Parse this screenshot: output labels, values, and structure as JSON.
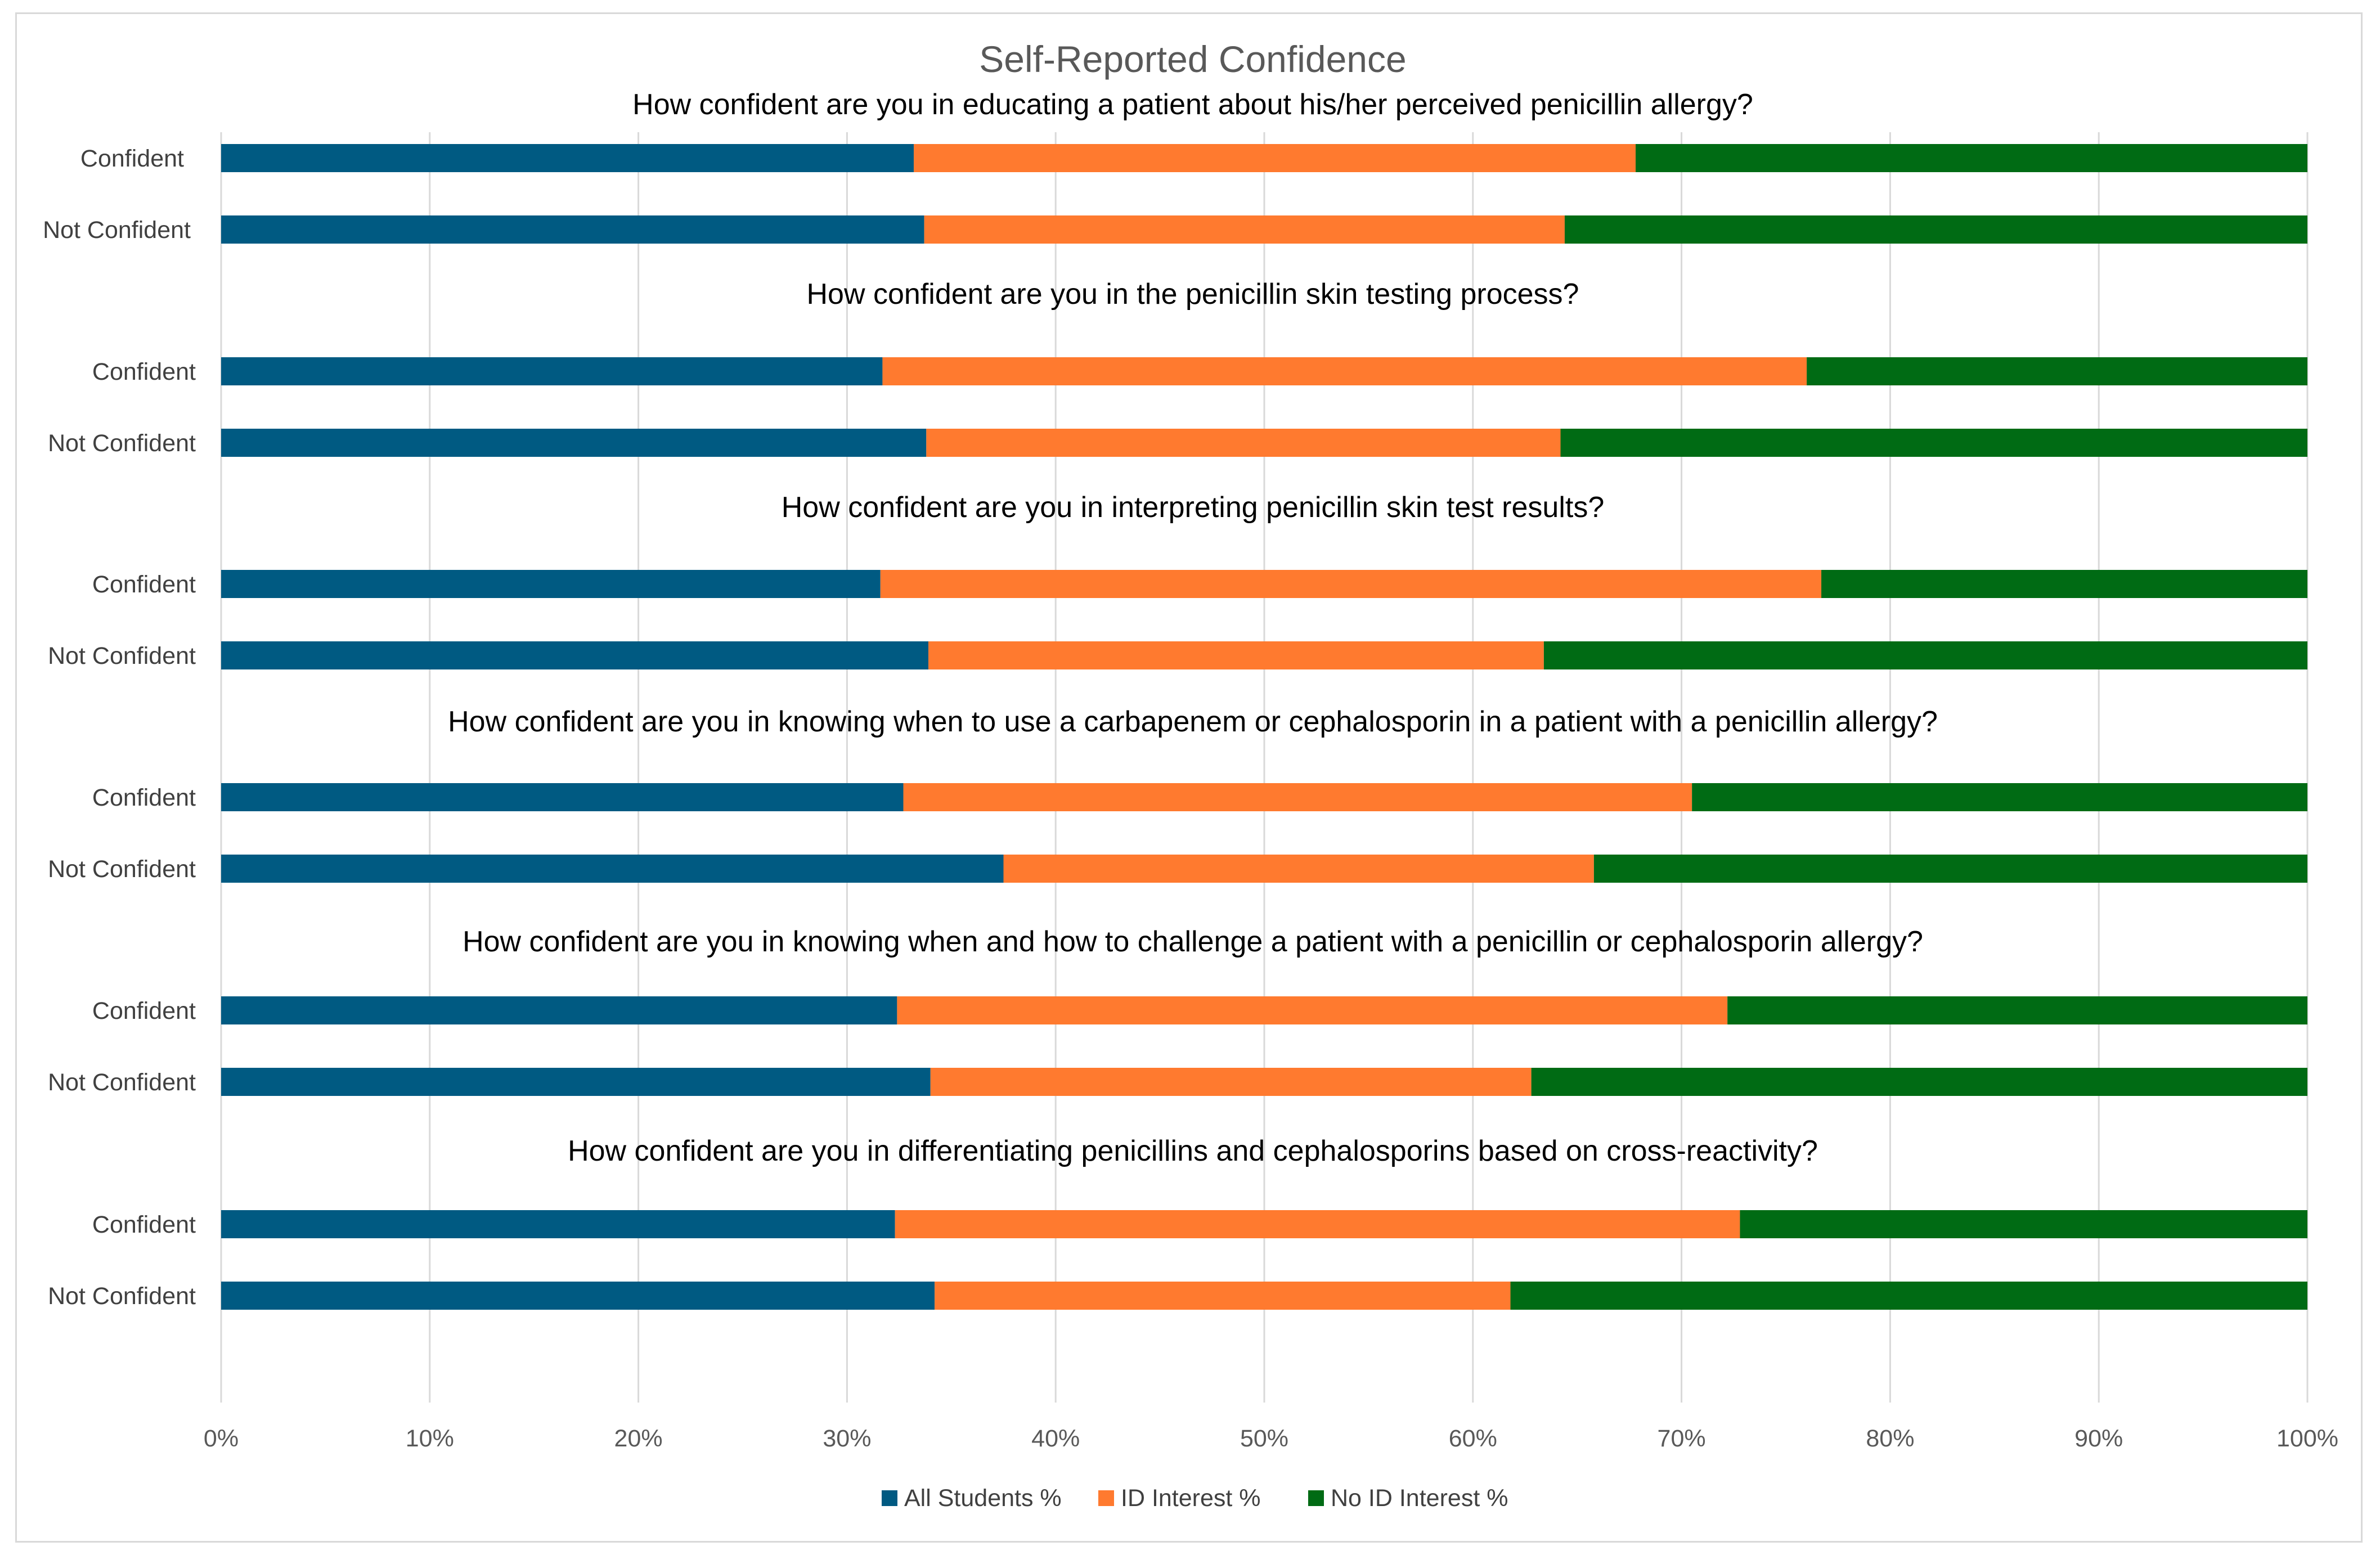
{
  "chart_data": {
    "type": "bar",
    "orientation": "horizontal",
    "stacked": true,
    "title": "Self-Reported Confidence",
    "x_range": [
      0,
      100
    ],
    "x_ticks": [
      "0%",
      "10%",
      "20%",
      "30%",
      "40%",
      "50%",
      "60%",
      "70%",
      "80%",
      "90%",
      "100%"
    ],
    "gridlines": true,
    "legend_position": "bottom",
    "series": [
      {
        "name": "All Students %",
        "color": "#005a82"
      },
      {
        "name": "ID Interest  %",
        "color": "#ff7a2f"
      },
      {
        "name": "No ID Interest  %",
        "color": "#006b14"
      }
    ],
    "groups": [
      {
        "question": "How confident are you in educating a patient about his/her perceived penicillin allergy?",
        "rows": [
          {
            "label": "Confident",
            "values": [
              33.2,
              34.6,
              32.2
            ]
          },
          {
            "label": "Not Confident",
            "values": [
              33.7,
              30.7,
              35.6
            ]
          }
        ]
      },
      {
        "question": "How confident are you in the penicillin skin testing process?",
        "rows": [
          {
            "label": "Confident",
            "values": [
              31.7,
              44.3,
              24.0
            ]
          },
          {
            "label": "Not Confident",
            "values": [
              33.8,
              30.4,
              35.8
            ]
          }
        ]
      },
      {
        "question": "How confident are you in interpreting penicillin skin test results?",
        "rows": [
          {
            "label": "Confident",
            "values": [
              31.6,
              45.1,
              23.3
            ]
          },
          {
            "label": "Not Confident",
            "values": [
              33.9,
              29.5,
              36.6
            ]
          }
        ]
      },
      {
        "question": "How confident are you in knowing when to use a carbapenem or cephalosporin in a patient with a penicillin allergy?",
        "rows": [
          {
            "label": "Confident",
            "values": [
              32.7,
              37.8,
              29.5
            ]
          },
          {
            "label": "Not Confident",
            "values": [
              37.5,
              28.3,
              34.2
            ]
          }
        ]
      },
      {
        "question": "How confident are you in knowing when and how to challenge a patient with a penicillin or cephalosporin allergy?",
        "rows": [
          {
            "label": "Confident",
            "values": [
              32.4,
              39.8,
              27.8
            ]
          },
          {
            "label": "Not Confident",
            "values": [
              34.0,
              28.8,
              37.2
            ]
          }
        ]
      },
      {
        "question": "How confident are you in differentiating penicillins and cephalosporins based on cross-reactivity?",
        "rows": [
          {
            "label": "Confident",
            "values": [
              32.3,
              40.5,
              27.2
            ]
          },
          {
            "label": "Not Confident",
            "values": [
              34.2,
              27.6,
              38.2
            ]
          }
        ]
      }
    ]
  }
}
